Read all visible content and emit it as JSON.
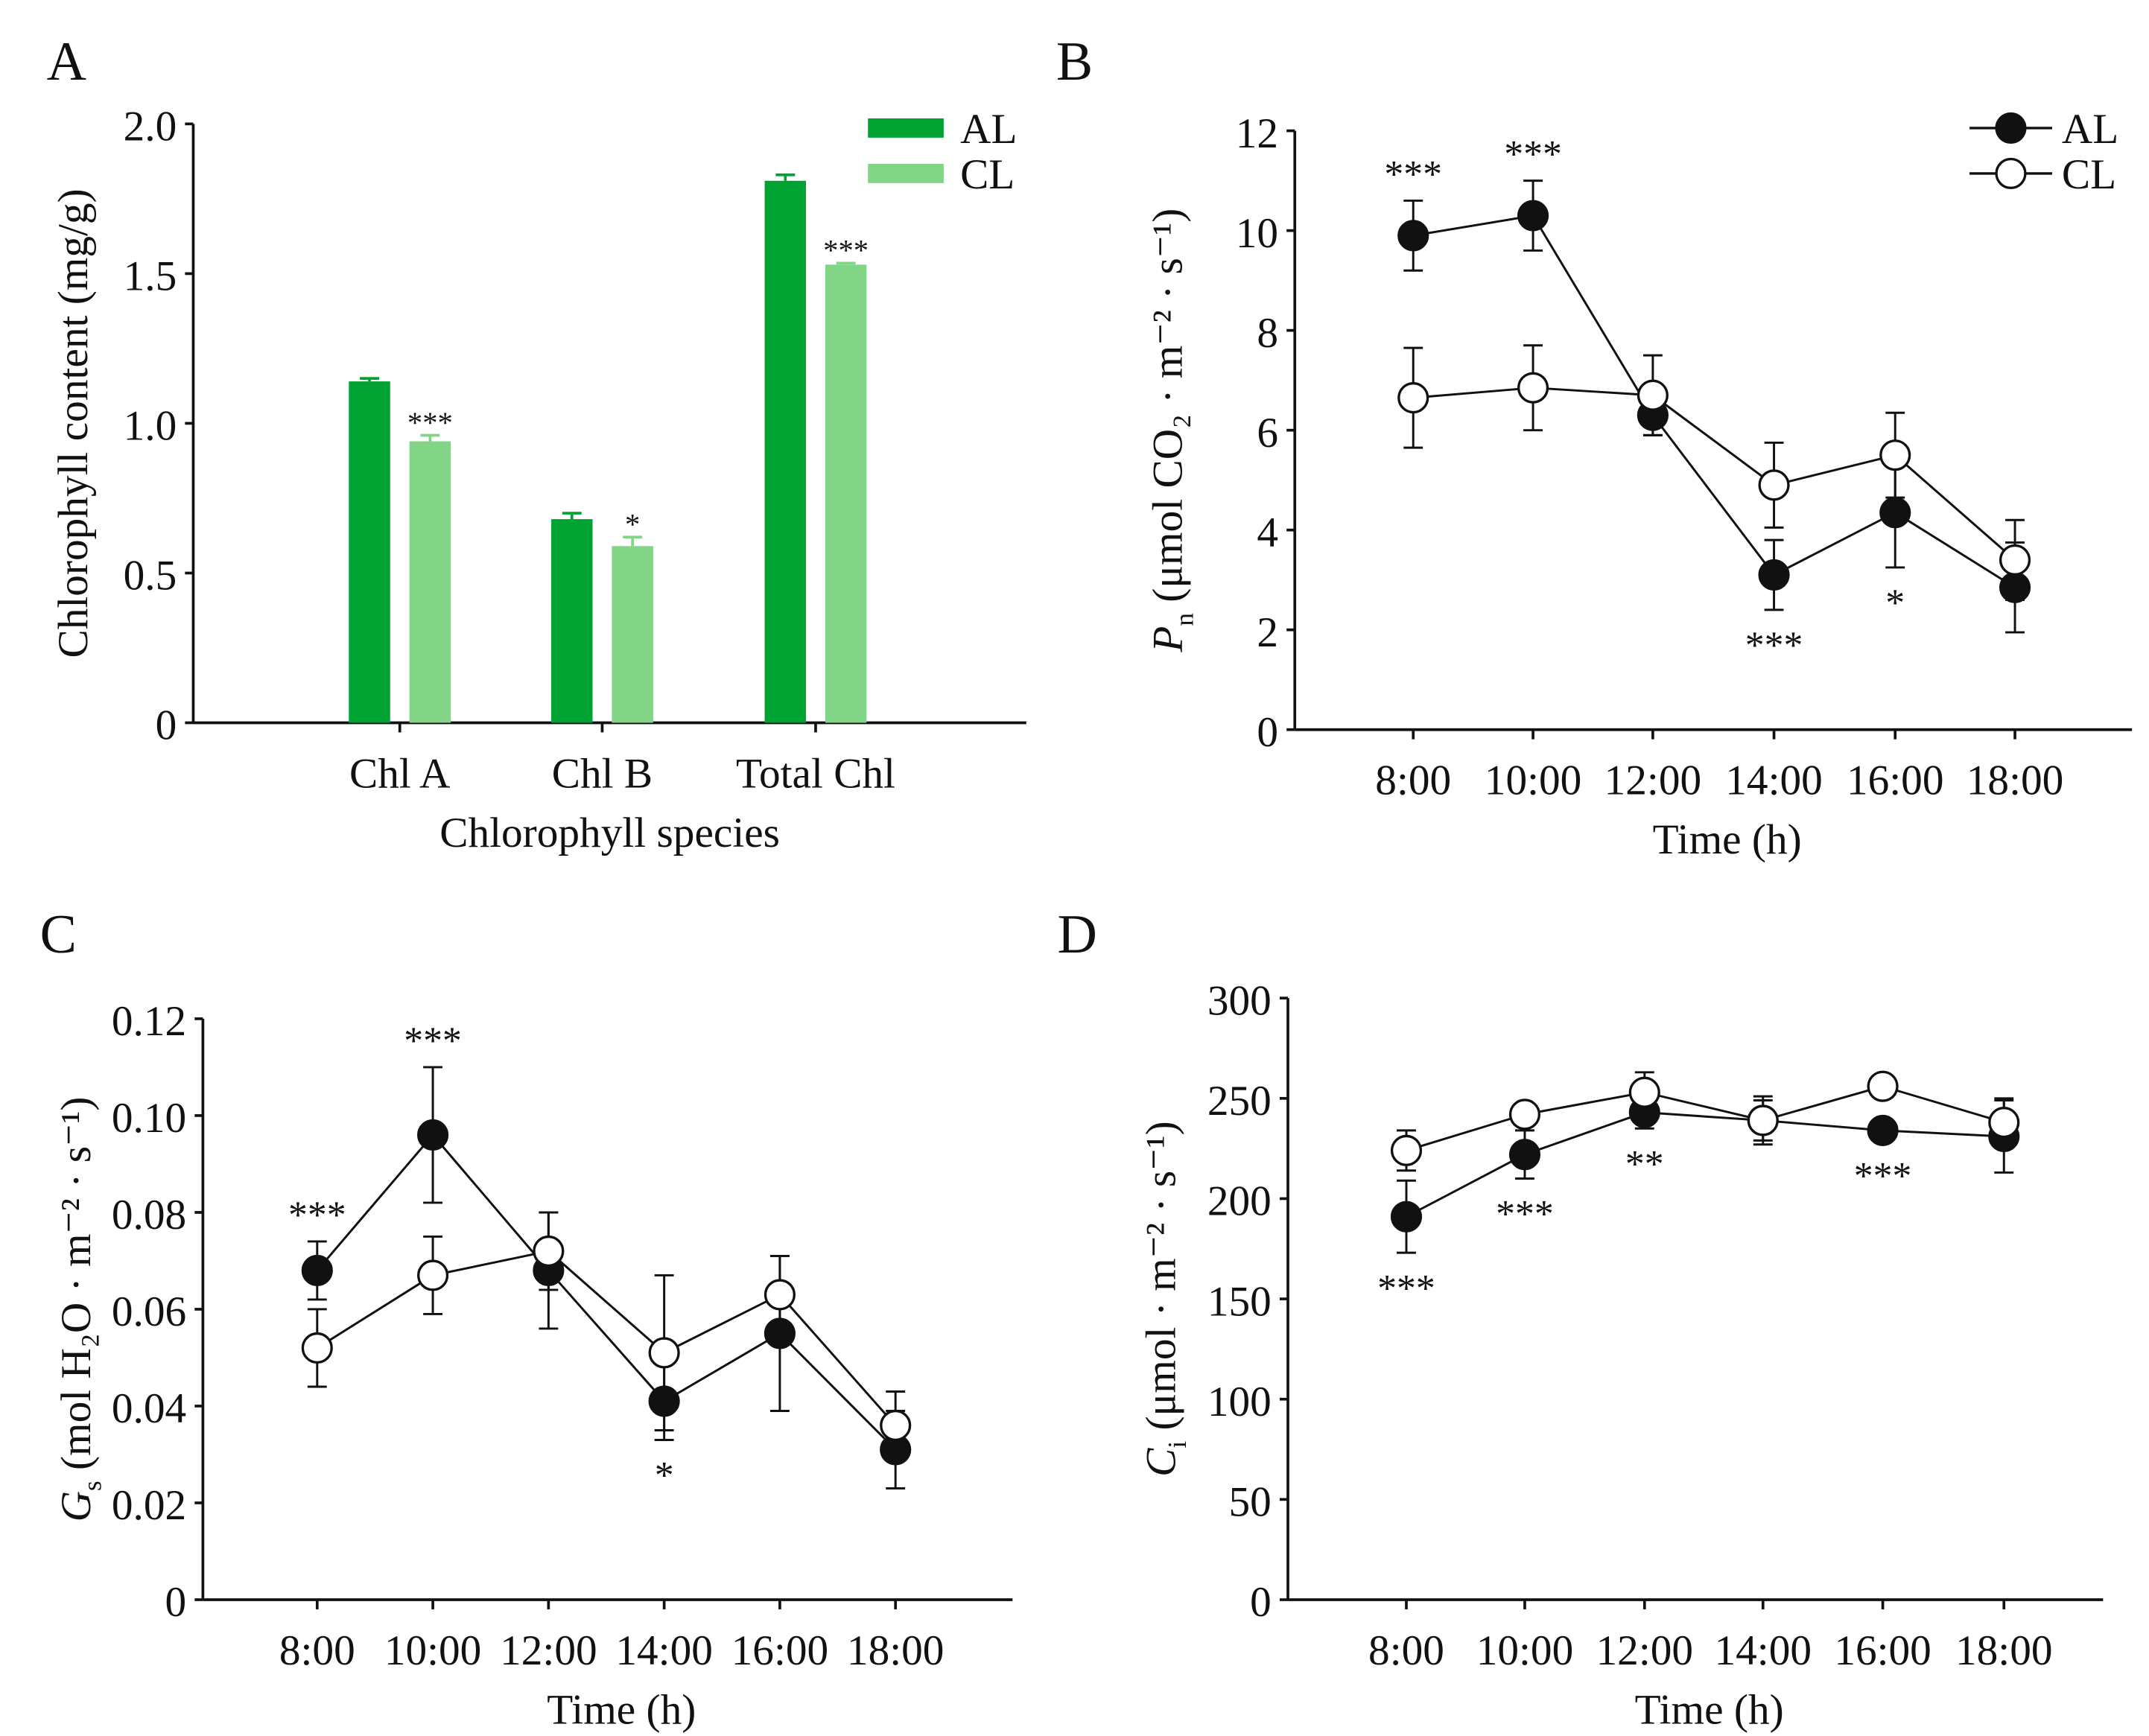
{
  "chart_data": [
    {
      "panel": "A",
      "type": "bar",
      "title": "",
      "xlabel": "Chlorophyll species",
      "ylabel": "Chlorophyll content (mg/g)",
      "ylim": [
        0,
        2.0
      ],
      "yticks": [
        0,
        0.5,
        1.0,
        1.5,
        2.0
      ],
      "ytick_labels": [
        "0",
        "0.5",
        "1.0",
        "1.5",
        "2.0"
      ],
      "categories": [
        "Chl A",
        "Chl B",
        "Total Chl"
      ],
      "legend_position": "top-right",
      "series": [
        {
          "name": "AL",
          "color": "#00a331",
          "values": [
            1.14,
            0.68,
            1.81
          ],
          "errors": [
            0.01,
            0.02,
            0.02
          ]
        },
        {
          "name": "CL",
          "color": "#82d486",
          "values": [
            0.94,
            0.59,
            1.53
          ],
          "errors": [
            0.02,
            0.03,
            0.005
          ],
          "annotations": [
            "***",
            "*",
            "***"
          ]
        }
      ]
    },
    {
      "panel": "B",
      "type": "line",
      "xlabel": "Time (h)",
      "ylabel_main": "P",
      "ylabel_sub": "n",
      "ylabel_rest": " (μmol CO₂ · m⁻² · s⁻¹)",
      "ylim": [
        0,
        12
      ],
      "yticks": [
        0,
        2,
        4,
        6,
        8,
        10,
        12
      ],
      "ytick_labels": [
        "0",
        "2",
        "4",
        "6",
        "8",
        "10",
        "12"
      ],
      "categories": [
        "8:00",
        "10:00",
        "12:00",
        "14:00",
        "16:00",
        "18:00"
      ],
      "legend_position": "top-right",
      "series": [
        {
          "name": "AL",
          "marker": "filled",
          "values": [
            9.9,
            10.3,
            6.3,
            3.1,
            4.35,
            2.85
          ],
          "errors": [
            0.7,
            0.7,
            0.4,
            0.7,
            1.1,
            0.9
          ]
        },
        {
          "name": "CL",
          "marker": "open",
          "values": [
            6.65,
            6.85,
            6.7,
            4.9,
            5.5,
            3.4
          ],
          "errors": [
            1.0,
            0.85,
            0.8,
            0.85,
            0.85,
            0.8
          ]
        }
      ],
      "annotations": [
        {
          "category": "8:00",
          "text": "***",
          "position": "above"
        },
        {
          "category": "10:00",
          "text": "***",
          "position": "above"
        },
        {
          "category": "14:00",
          "text": "***",
          "position": "below"
        },
        {
          "category": "16:00",
          "text": "*",
          "position": "below"
        }
      ]
    },
    {
      "panel": "C",
      "type": "line",
      "xlabel": "Time (h)",
      "ylabel_main": "G",
      "ylabel_sub": "s",
      "ylabel_rest": " (mol H₂O · m⁻² · s⁻¹)",
      "ylim": [
        0,
        0.12
      ],
      "yticks": [
        0,
        0.02,
        0.04,
        0.06,
        0.08,
        0.1,
        0.12
      ],
      "ytick_labels": [
        "0",
        "0.02",
        "0.04",
        "0.06",
        "0.08",
        "0.10",
        "0.12"
      ],
      "categories": [
        "8:00",
        "10:00",
        "12:00",
        "14:00",
        "16:00",
        "18:00"
      ],
      "series": [
        {
          "name": "AL",
          "marker": "filled",
          "values": [
            0.068,
            0.096,
            0.068,
            0.041,
            0.055,
            0.031
          ],
          "errors": [
            0.006,
            0.014,
            0.012,
            0.008,
            0.016,
            0.008
          ]
        },
        {
          "name": "CL",
          "marker": "open",
          "values": [
            0.052,
            0.067,
            0.072,
            0.051,
            0.063,
            0.036
          ],
          "errors": [
            0.008,
            0.008,
            0.008,
            0.016,
            0.008,
            0.007
          ]
        }
      ],
      "annotations": [
        {
          "category": "8:00",
          "text": "***",
          "position": "above"
        },
        {
          "category": "10:00",
          "text": "***",
          "position": "above"
        },
        {
          "category": "14:00",
          "text": "*",
          "position": "below"
        }
      ]
    },
    {
      "panel": "D",
      "type": "line",
      "xlabel": "Time (h)",
      "ylabel_main": "C",
      "ylabel_sub": "i",
      "ylabel_rest": " (μmol · m⁻² · s⁻¹)",
      "ylim": [
        0,
        300
      ],
      "yticks": [
        0,
        50,
        100,
        150,
        200,
        250,
        300
      ],
      "ytick_labels": [
        "0",
        "50",
        "100",
        "150",
        "200",
        "250",
        "300"
      ],
      "categories": [
        "8:00",
        "10:00",
        "12:00",
        "14:00",
        "16:00",
        "18:00"
      ],
      "series": [
        {
          "name": "AL",
          "marker": "filled",
          "values": [
            191,
            222,
            243,
            239,
            234,
            231
          ],
          "errors": [
            18,
            12,
            8,
            10,
            5,
            18
          ]
        },
        {
          "name": "CL",
          "marker": "open",
          "values": [
            224,
            242,
            253,
            239,
            256,
            238
          ],
          "errors": [
            10,
            5,
            10,
            12,
            5,
            12
          ]
        }
      ],
      "annotations": [
        {
          "category": "8:00",
          "text": "***",
          "position": "below"
        },
        {
          "category": "10:00",
          "text": "***",
          "position": "below"
        },
        {
          "category": "12:00",
          "text": "**",
          "position": "below"
        },
        {
          "category": "16:00",
          "text": "***",
          "position": "below"
        }
      ]
    }
  ]
}
